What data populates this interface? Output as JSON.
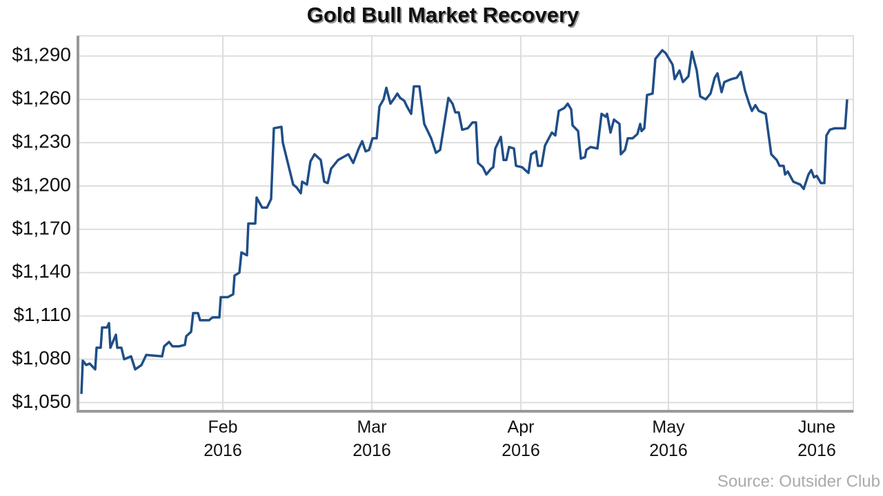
{
  "chart_data": {
    "type": "line",
    "title": "Gold Bull Market Recovery",
    "source": "Source: Outsider Club",
    "color": "#1f4e87",
    "x": [
      0,
      0.2,
      0.7,
      1.2,
      2,
      2.2,
      2.8,
      3,
      3.7,
      4,
      4.2,
      5,
      5.2,
      5.8,
      6.2,
      7.2,
      7.8,
      8.7,
      9.4,
      11.7,
      12,
      12.7,
      13.2,
      14.2,
      15,
      15.2,
      15.9,
      16.2,
      16.9,
      17.2,
      18.5,
      19,
      20,
      20.2,
      21.2,
      22,
      22.2,
      22.9,
      23.2,
      24,
      24.2,
      25.2,
      25.4,
      26.2,
      26.9,
      27.5,
      27.9,
      29,
      29.2,
      30.7,
      31.2,
      31.8,
      32,
      32.7,
      33.2,
      33.8,
      34.7,
      35.2,
      35.7,
      36.2,
      37.2,
      38.7,
      39.4,
      40.2,
      40.7,
      41.2,
      41.7,
      42.2,
      42.8,
      43.2,
      43.8,
      44.2,
      44.8,
      45.4,
      45.8,
      46.2,
      46.8,
      47.2,
      47.8,
      48.2,
      49,
      49.7,
      50.7,
      51.4,
      52,
      53.2,
      53.8,
      54.2,
      54.7,
      55.2,
      56,
      56.7,
      57.2,
      57.5,
      58.2,
      58.7,
      59.4,
      59.7,
      60,
      60.8,
      61.2,
      61.6,
      62,
      62.7,
      63,
      63.9,
      64.8,
      65.2,
      65.9,
      66.2,
      66.7,
      67.2,
      68.2,
      68.7,
      69.2,
      70,
      70.5,
      71,
      71.2,
      72,
      72.4,
      73,
      73.2,
      73.8,
      74.8,
      75.4,
      76,
      76.2,
      76.7,
      77.2,
      78,
      78.2,
      78.8,
      79.2,
      79.9,
      80.6,
      81,
      81.2,
      81.6,
      82,
      82.8,
      83.2,
      84.2,
      84.7,
      85.7,
      86,
      86.7,
      87.2,
      88,
      88.5,
      89.2,
      89.7,
      90.5,
      91.2,
      91.8,
      92.2,
      92.8,
      93.2,
      94.2,
      95,
      95.6,
      96.2,
      96.8,
      97.2,
      97.7,
      98.2,
      99.2,
      100,
      100.8,
      101.2,
      101.8,
      102,
      102.4,
      103.2,
      104.2,
      104.7,
      105.4,
      105.8,
      106.2,
      106.6,
      107.2,
      107.7,
      108,
      108.5,
      109.2,
      110.7,
      111
    ],
    "values": [
      1056,
      1079,
      1076,
      1077,
      1073,
      1088,
      1088,
      1102,
      1102,
      1105,
      1088,
      1097,
      1088,
      1088,
      1080,
      1082,
      1073,
      1076,
      1083,
      1082,
      1089,
      1092,
      1089,
      1089,
      1090,
      1096,
      1099,
      1112,
      1112,
      1107,
      1107,
      1109,
      1109,
      1123,
      1123,
      1125,
      1138,
      1140,
      1154,
      1152,
      1174,
      1174,
      1192,
      1185,
      1185,
      1191,
      1240,
      1241,
      1230,
      1201,
      1199,
      1195,
      1203,
      1201,
      1217,
      1222,
      1218,
      1203,
      1202,
      1212,
      1218,
      1222,
      1216,
      1226,
      1231,
      1224,
      1225,
      1233,
      1233,
      1255,
      1260,
      1268,
      1257,
      1261,
      1264,
      1261,
      1259,
      1255,
      1250,
      1269,
      1269,
      1243,
      1233,
      1223,
      1225,
      1261,
      1257,
      1251,
      1251,
      1239,
      1240,
      1244,
      1244,
      1216,
      1213,
      1208,
      1212,
      1213,
      1226,
      1234,
      1218,
      1218,
      1227,
      1226,
      1214,
      1213,
      1209,
      1222,
      1224,
      1214,
      1214,
      1228,
      1237,
      1235,
      1252,
      1254,
      1257,
      1253,
      1242,
      1238,
      1219,
      1220,
      1225,
      1227,
      1226,
      1250,
      1248,
      1250,
      1237,
      1246,
      1243,
      1222,
      1225,
      1233,
      1233,
      1236,
      1243,
      1238,
      1240,
      1263,
      1264,
      1288,
      1294,
      1292,
      1284,
      1274,
      1280,
      1272,
      1276,
      1293,
      1280,
      1262,
      1260,
      1264,
      1275,
      1278,
      1265,
      1272,
      1274,
      1275,
      1279,
      1266,
      1257,
      1252,
      1256,
      1252,
      1250,
      1222,
      1218,
      1214,
      1214,
      1208,
      1210,
      1203,
      1201,
      1198,
      1208,
      1211,
      1206,
      1207,
      1202,
      1202,
      1235,
      1239,
      1240,
      1240,
      1260
    ],
    "xlim": [
      -0.5,
      111.9
    ],
    "xticks": [
      {
        "value": 20.5,
        "label": "Feb 2016"
      },
      {
        "value": 42.1,
        "label": "Mar 2016"
      },
      {
        "value": 63.7,
        "label": "Apr 2016"
      },
      {
        "value": 85.1,
        "label": "May 2016"
      },
      {
        "value": 106.6,
        "label": "June 2016"
      }
    ],
    "ylim": [
      1044,
      1304
    ],
    "yticks": [
      {
        "value": 1050,
        "label": "$1,050"
      },
      {
        "value": 1080,
        "label": "$1,080"
      },
      {
        "value": 1110,
        "label": "$1,110"
      },
      {
        "value": 1140,
        "label": "$1,140"
      },
      {
        "value": 1170,
        "label": "$1,170"
      },
      {
        "value": 1200,
        "label": "$1,200"
      },
      {
        "value": 1230,
        "label": "$1,230"
      },
      {
        "value": 1260,
        "label": "$1,260"
      },
      {
        "value": 1290,
        "label": "$1,290"
      }
    ],
    "grid": true
  }
}
